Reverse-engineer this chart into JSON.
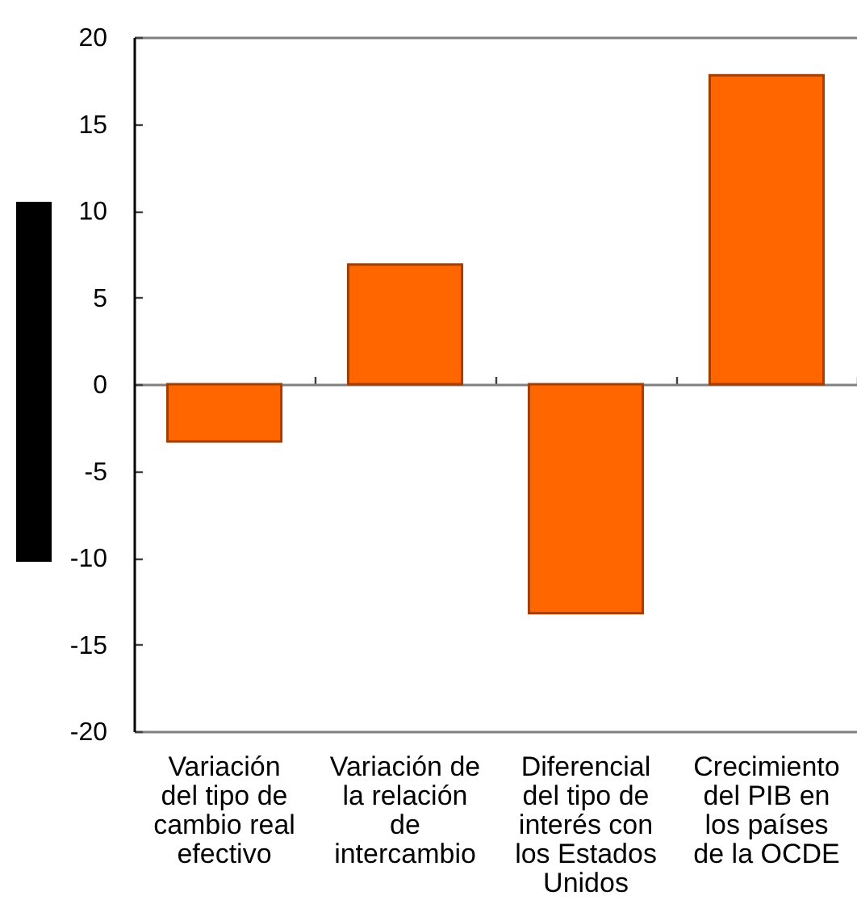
{
  "chart_data": {
    "type": "bar",
    "categories": [
      "Variación del tipo de cambio real efectivo",
      "Variación de la relación de intercambio",
      "Diferencial del tipo de interés con los Estados Unidos",
      "Crecimiento del PIB en los países de la OCDE"
    ],
    "values": [
      -3.3,
      6.9,
      -13.2,
      17.8
    ],
    "color": "#ff6600",
    "ylim": [
      -20,
      20
    ],
    "yticks": [
      -20,
      -15,
      -10,
      -5,
      0,
      5,
      10,
      15,
      20
    ]
  }
}
